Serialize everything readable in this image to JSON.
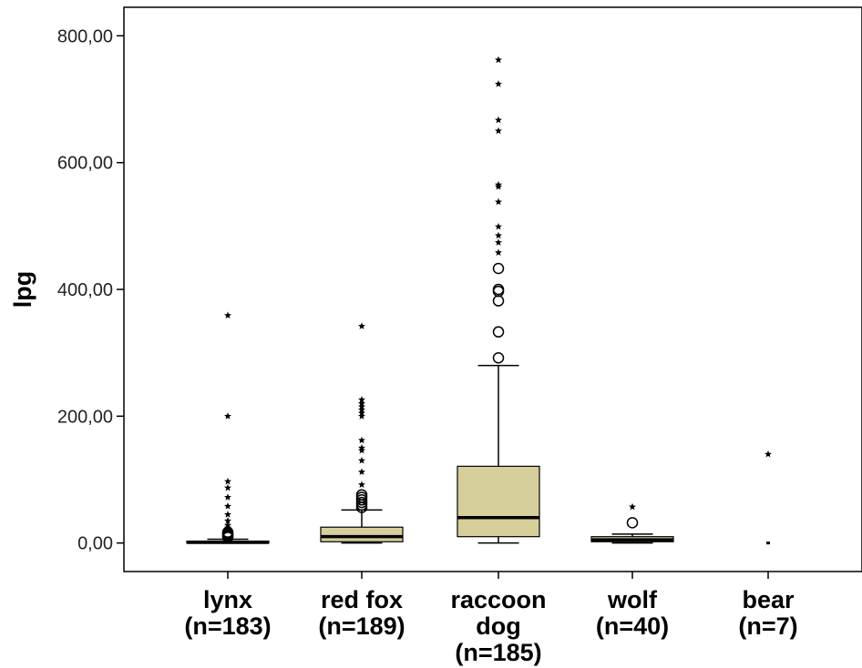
{
  "chart_data": {
    "type": "boxplot",
    "ylabel": "lpg",
    "xlabel": "",
    "ylim": [
      -45,
      845
    ],
    "yticks": [
      0,
      200,
      400,
      600,
      800
    ],
    "ytick_labels": [
      "0,00",
      "200,00",
      "400,00",
      "600,00",
      "800,00"
    ],
    "grid": false,
    "colors": {
      "box_fill": "#d6cf9b",
      "stroke": "#000000",
      "background": "#ffffff"
    },
    "categories": [
      {
        "label_lines": [
          "lynx",
          "(n=183)"
        ],
        "box": [
          0,
          1,
          3
        ],
        "whiskers": [
          0,
          6
        ],
        "outliers_circle": [
          9,
          11,
          13,
          15,
          17
        ],
        "outliers_star": [
          20,
          24,
          28,
          35,
          45,
          58,
          72,
          87,
          97,
          200,
          359
        ]
      },
      {
        "label_lines": [
          "red fox",
          "(n=189)"
        ],
        "box": [
          2,
          10,
          25
        ],
        "whiskers": [
          0,
          52
        ],
        "outliers_circle": [
          56,
          60,
          64,
          68,
          72,
          76
        ],
        "outliers_star": [
          92,
          112,
          130,
          146,
          150,
          162,
          200,
          205,
          210,
          215,
          220,
          226,
          342
        ]
      },
      {
        "label_lines": [
          "raccoon",
          "dog",
          "(n=185)"
        ],
        "box": [
          10,
          40,
          121
        ],
        "whiskers": [
          0,
          280
        ],
        "outliers_circle": [
          292,
          333,
          382,
          397,
          400,
          433
        ],
        "outliers_star": [
          458,
          474,
          485,
          499,
          538,
          562,
          565,
          650,
          667,
          724,
          762
        ]
      },
      {
        "label_lines": [
          "wolf",
          "(n=40)"
        ],
        "box": [
          2,
          5,
          10
        ],
        "whiskers": [
          0,
          14
        ],
        "outliers_circle": [
          32
        ],
        "outliers_star": [
          57
        ]
      },
      {
        "label_lines": [
          "bear",
          "(n=7)"
        ],
        "box": [
          0,
          0,
          0
        ],
        "whiskers": [
          0,
          0
        ],
        "outliers_circle": [],
        "outliers_star": [
          140
        ]
      }
    ]
  }
}
